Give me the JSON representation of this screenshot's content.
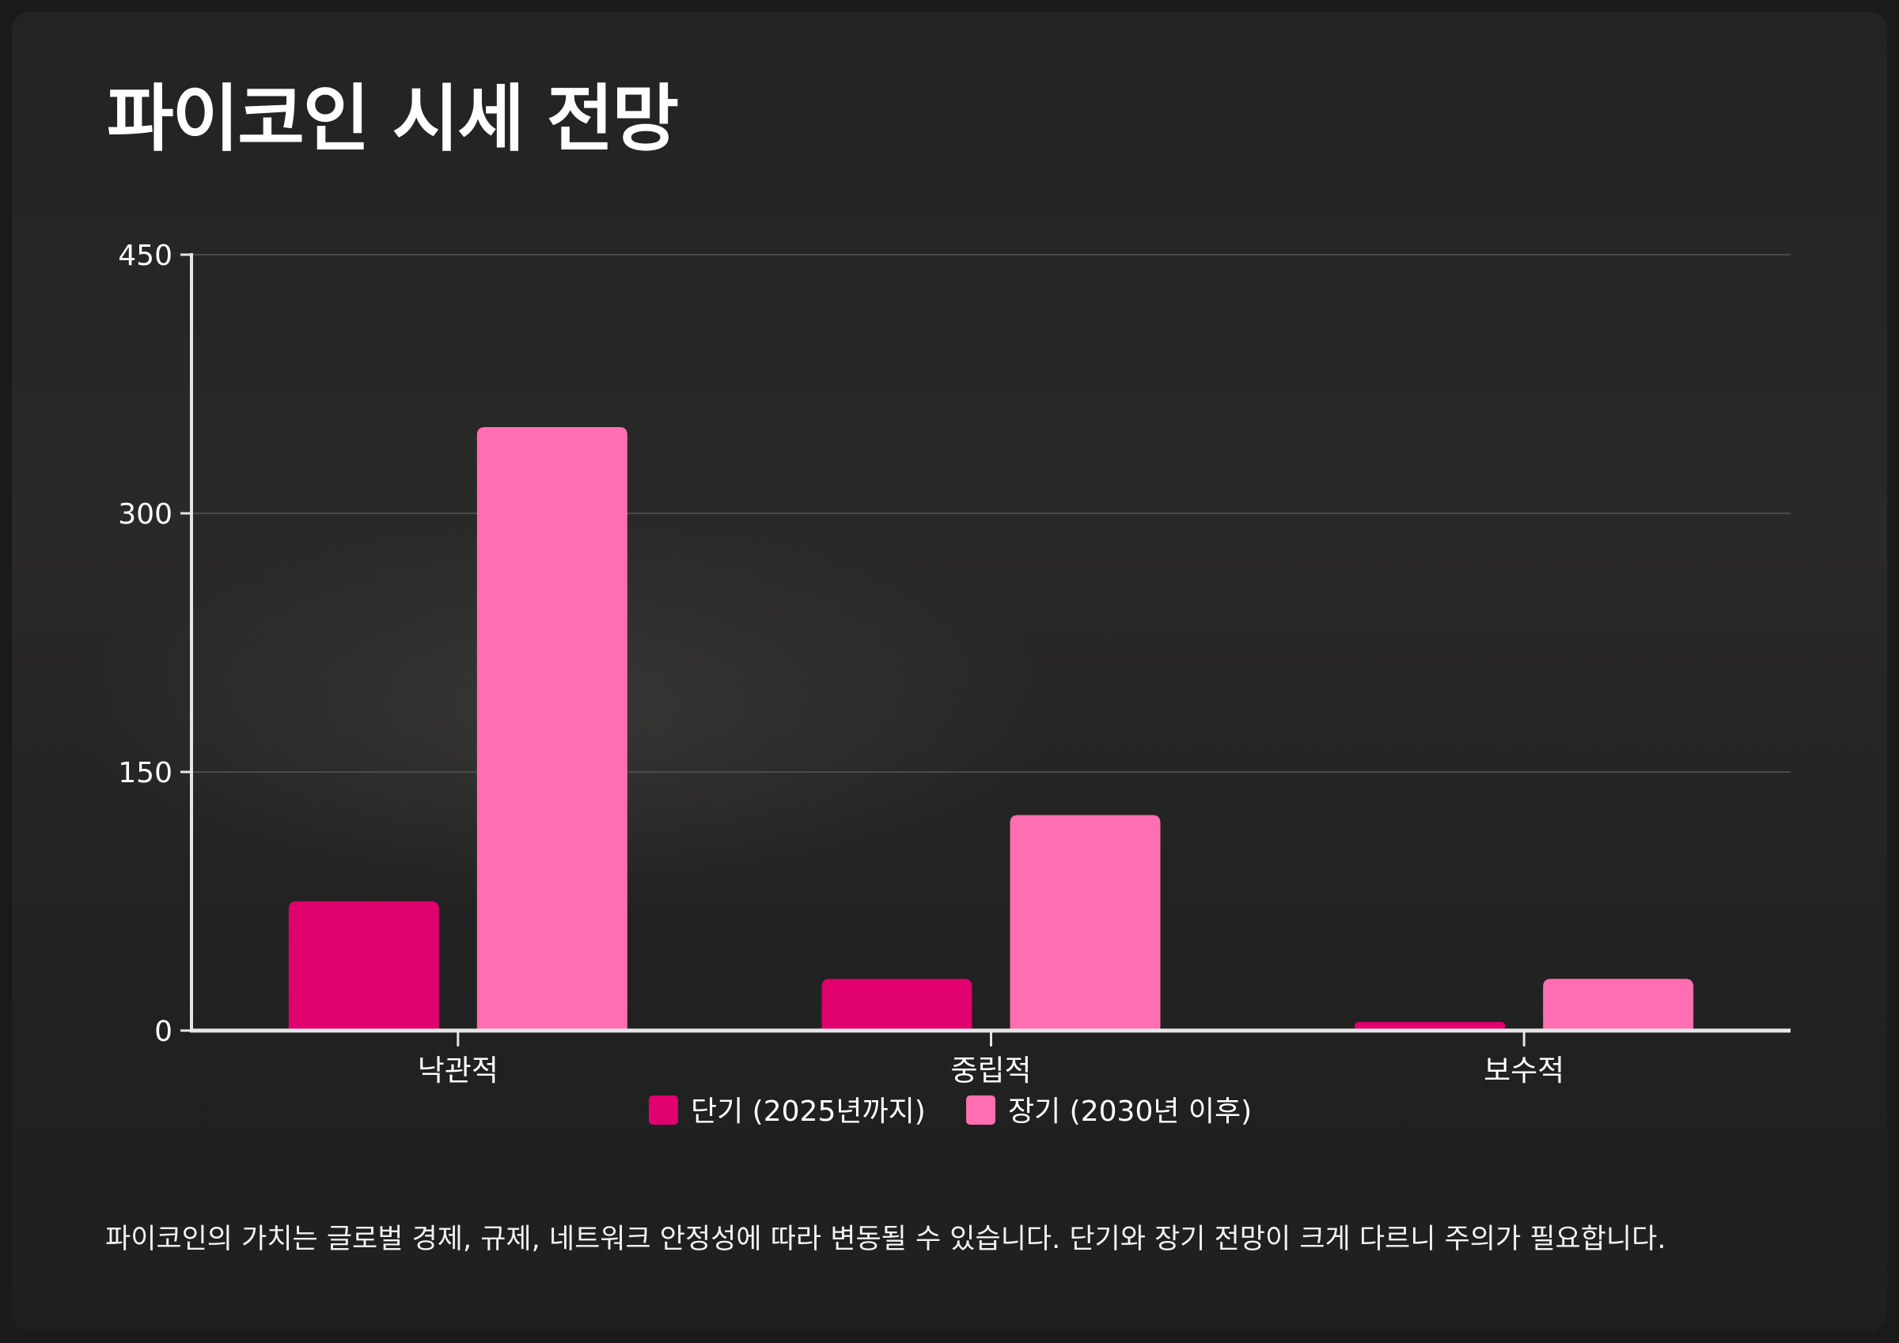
{
  "page": {
    "title": "파이코인 시세 전망",
    "note": "파이코인의 가치는 글로벌 경제, 규제, 네트워크 안정성에 따라 변동될 수 있습니다. 단기와 장기 전망이 크게 다르니 주의가 필요합니다."
  },
  "chart_data": {
    "type": "bar",
    "title": "",
    "xlabel": "",
    "ylabel": "",
    "categories": [
      "낙관적",
      "중립적",
      "보수적"
    ],
    "series": [
      {
        "name": "단기 (2025년까지)",
        "color": "#e0006e",
        "values": [
          75,
          30,
          5
        ]
      },
      {
        "name": "장기 (2030년 이후)",
        "color": "#ff6eb0",
        "values": [
          350,
          125,
          30
        ]
      }
    ],
    "ylim": [
      0,
      450
    ],
    "yticks": [
      0,
      150,
      300,
      450
    ],
    "grid": true,
    "legend": "bottom"
  }
}
